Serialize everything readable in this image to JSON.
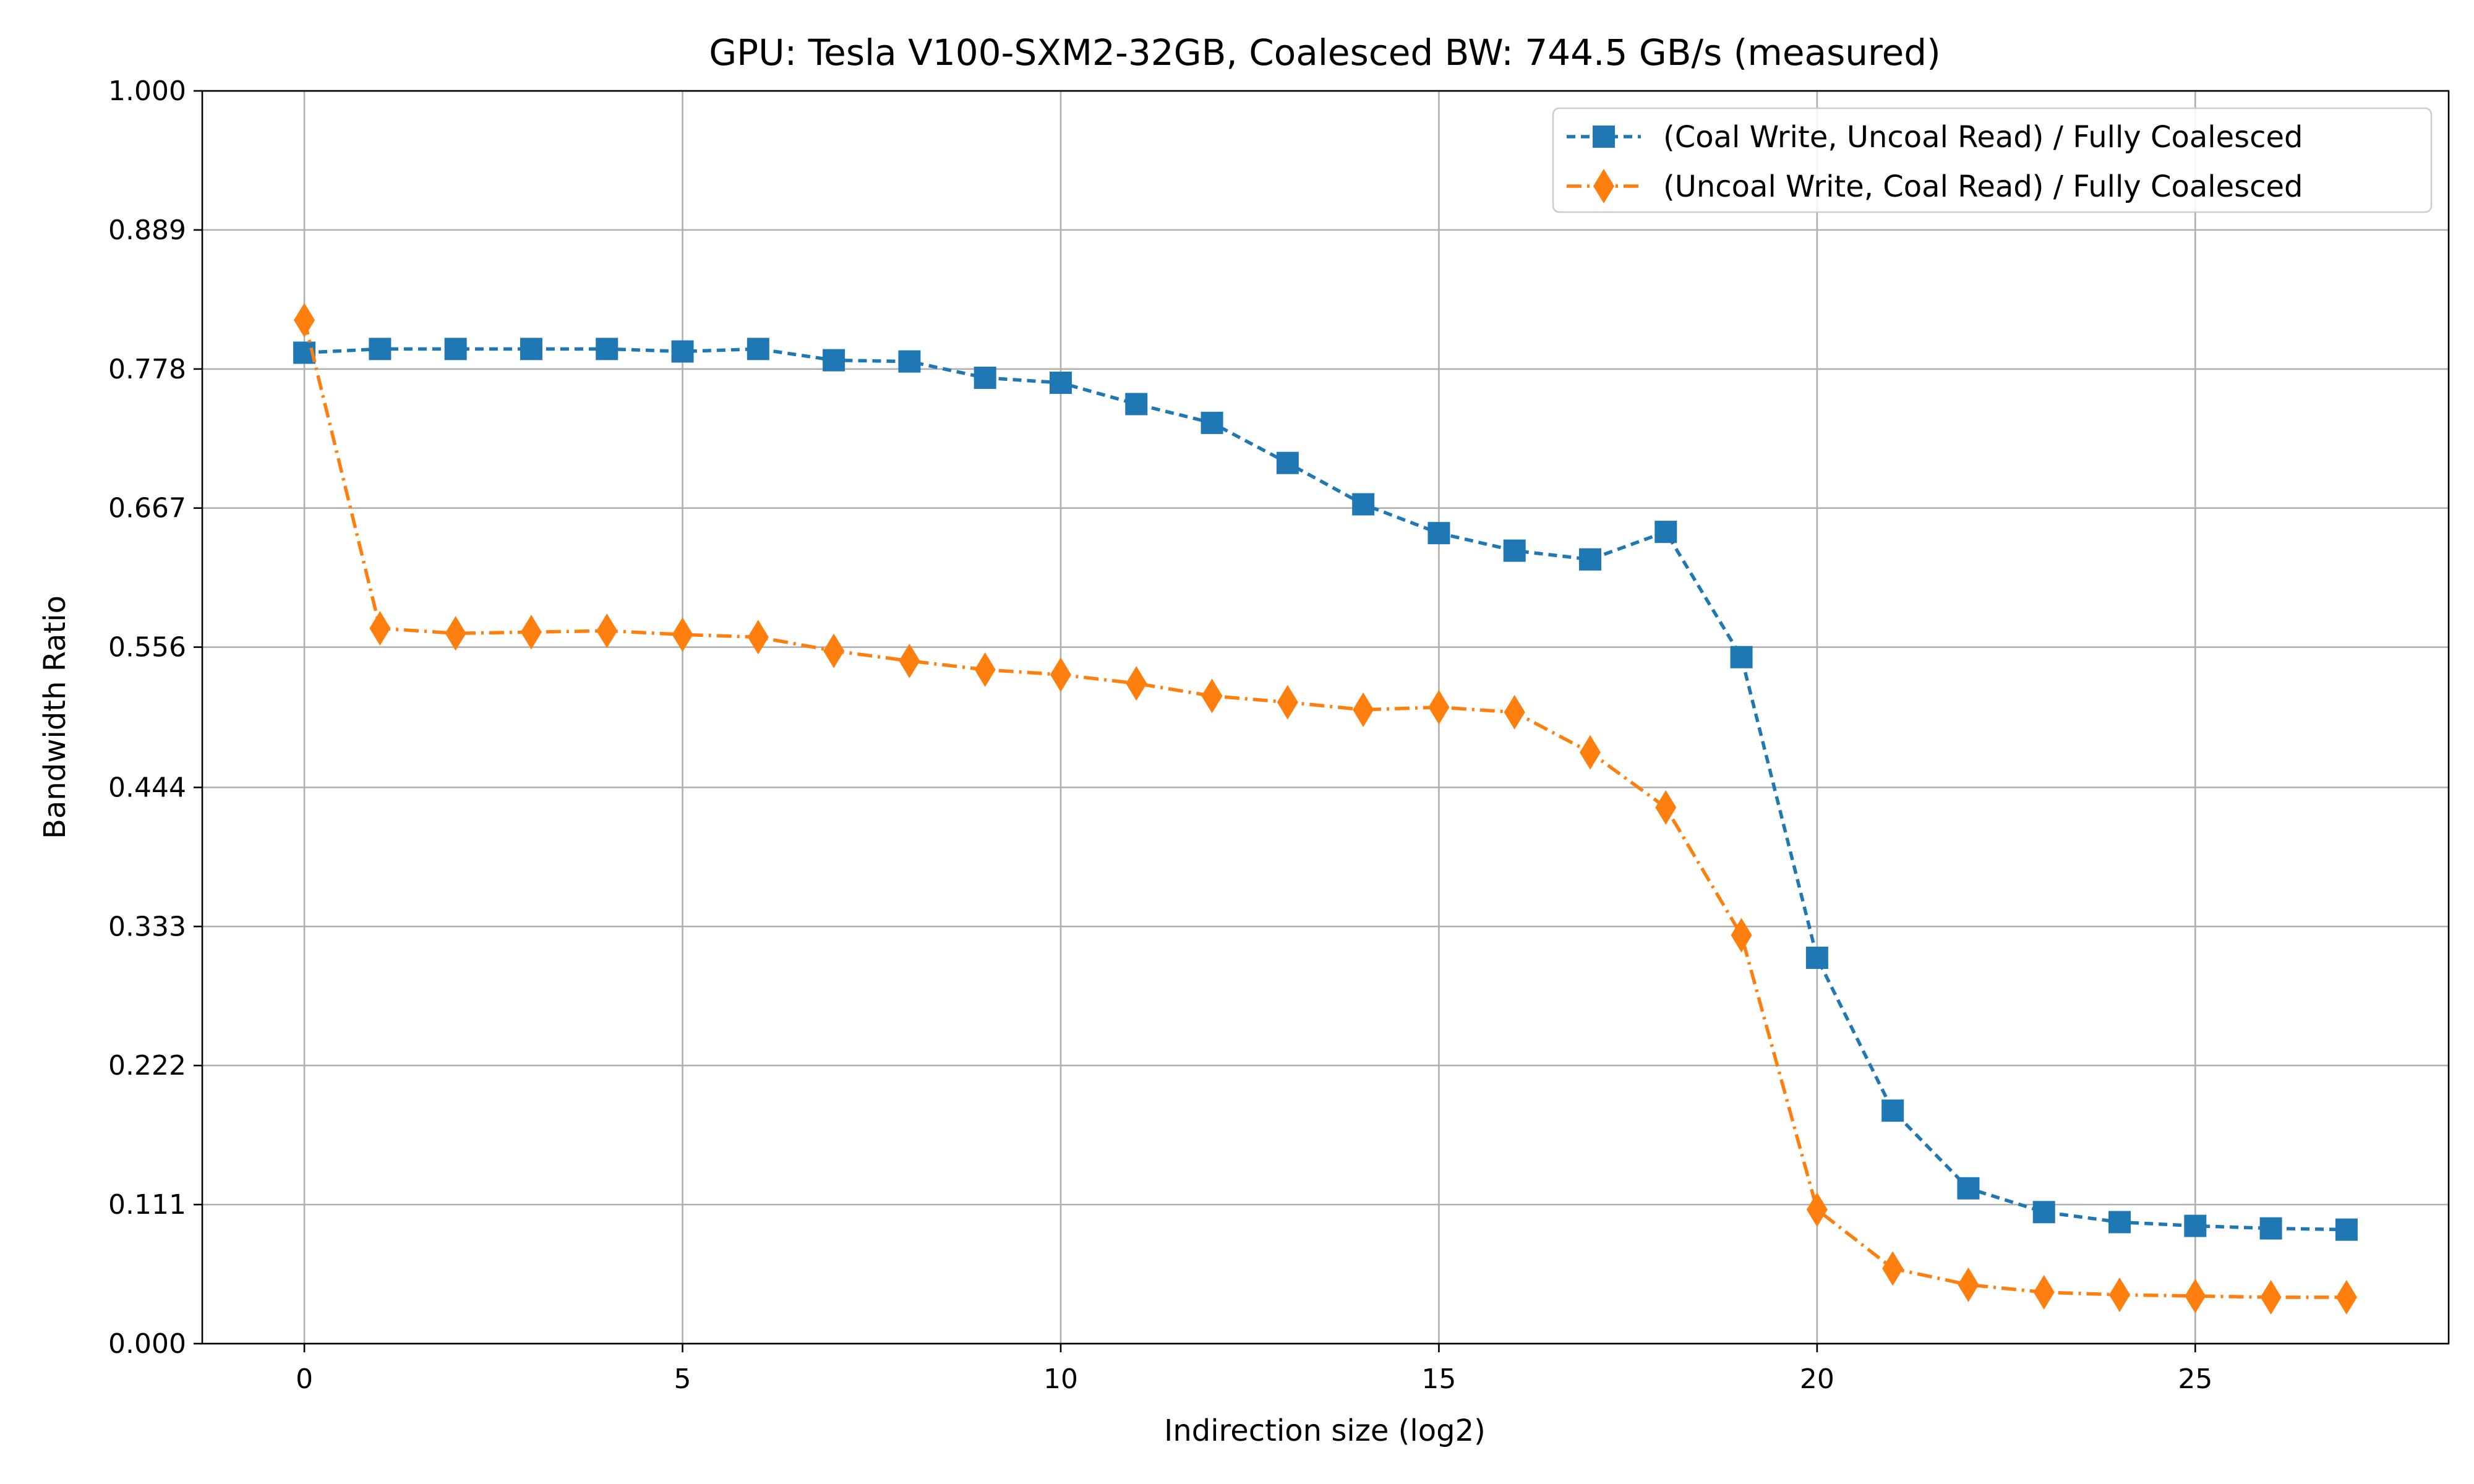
{
  "chart_data": {
    "type": "line",
    "title": "GPU: Tesla V100-SXM2-32GB, Coalesced BW: 744.5 GB/s (measured)",
    "xlabel": "Indirection size (log2)",
    "ylabel": "Bandwidth Ratio",
    "xlim": [
      -1.35,
      28.35
    ],
    "ylim": [
      0.0,
      1.0
    ],
    "xticks": [
      0,
      5,
      10,
      15,
      20,
      25
    ],
    "xtick_labels": [
      "0",
      "5",
      "10",
      "15",
      "20",
      "25"
    ],
    "yticks": [
      0.0,
      0.111,
      0.222,
      0.333,
      0.444,
      0.556,
      0.667,
      0.778,
      0.889,
      1.0
    ],
    "ytick_labels": [
      "0.000",
      "0.111",
      "0.222",
      "0.333",
      "0.444",
      "0.556",
      "0.667",
      "0.778",
      "0.889",
      "1.000"
    ],
    "grid": true,
    "legend_position": "top-right",
    "x": [
      0,
      1,
      2,
      3,
      4,
      5,
      6,
      7,
      8,
      9,
      10,
      11,
      12,
      13,
      14,
      15,
      16,
      17,
      18,
      19,
      20,
      21,
      22,
      23,
      24,
      25,
      26,
      27
    ],
    "series": [
      {
        "name": "(Coal Write, Uncoal Read) / Fully Coalesced",
        "color": "#1f77b4",
        "marker": "square",
        "line_style": "dashed",
        "values": [
          0.791,
          0.794,
          0.794,
          0.794,
          0.794,
          0.792,
          0.794,
          0.785,
          0.784,
          0.771,
          0.767,
          0.75,
          0.735,
          0.703,
          0.67,
          0.647,
          0.633,
          0.626,
          0.648,
          0.548,
          0.308,
          0.186,
          0.124,
          0.105,
          0.097,
          0.094,
          0.092,
          0.091
        ]
      },
      {
        "name": "(Uncoal Write, Coal Read) / Fully Coalesced",
        "color": "#ff7f0e",
        "marker": "diamond",
        "line_style": "dashdot",
        "values": [
          0.817,
          0.571,
          0.567,
          0.568,
          0.569,
          0.566,
          0.564,
          0.553,
          0.545,
          0.538,
          0.534,
          0.527,
          0.517,
          0.512,
          0.506,
          0.508,
          0.504,
          0.472,
          0.428,
          0.326,
          0.107,
          0.06,
          0.047,
          0.041,
          0.039,
          0.038,
          0.037,
          0.037
        ]
      }
    ]
  }
}
